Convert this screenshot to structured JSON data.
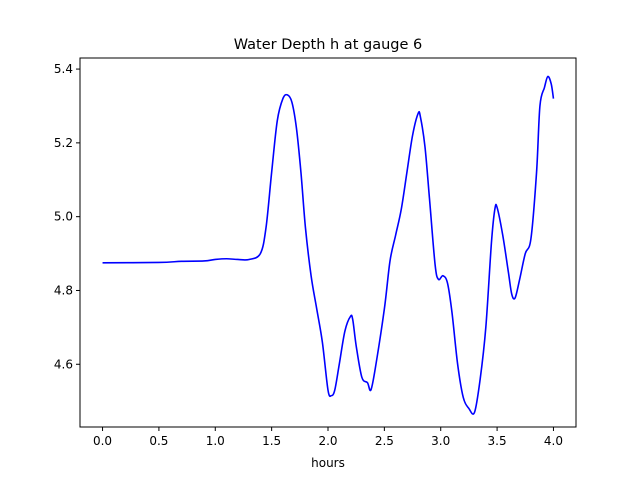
{
  "chart_data": {
    "type": "line",
    "title": "Water Depth h at gauge 6",
    "xlabel": "hours",
    "ylabel": "",
    "xlim": [
      -0.2,
      4.2
    ],
    "ylim": [
      4.43,
      5.43
    ],
    "xticks": [
      "0.0",
      "0.5",
      "1.0",
      "1.5",
      "2.0",
      "2.5",
      "3.0",
      "3.5",
      "4.0"
    ],
    "yticks": [
      "4.6",
      "4.8",
      "5.0",
      "5.2",
      "5.4"
    ],
    "grid": false,
    "line_color": "#0000ff",
    "series": [
      {
        "x": [
          0.0,
          0.5,
          0.7,
          0.9,
          1.0,
          1.1,
          1.2,
          1.3,
          1.4,
          1.45,
          1.5,
          1.55,
          1.6,
          1.64,
          1.68,
          1.72,
          1.76,
          1.8,
          1.85,
          1.9,
          1.95,
          2.0,
          2.03,
          2.06,
          2.1,
          2.15,
          2.2,
          2.22,
          2.25,
          2.3,
          2.35,
          2.38,
          2.42,
          2.5,
          2.55,
          2.6,
          2.65,
          2.7,
          2.75,
          2.8,
          2.82,
          2.86,
          2.9,
          2.95,
          2.98,
          3.02,
          3.06,
          3.1,
          3.15,
          3.2,
          3.25,
          3.3,
          3.35,
          3.4,
          3.45,
          3.48,
          3.5,
          3.55,
          3.6,
          3.63,
          3.66,
          3.7,
          3.75,
          3.8,
          3.85,
          3.88,
          3.92,
          3.95,
          3.98,
          4.0
        ],
        "y": [
          4.875,
          4.876,
          4.879,
          4.88,
          4.884,
          4.886,
          4.884,
          4.884,
          4.9,
          4.97,
          5.12,
          5.26,
          5.32,
          5.33,
          5.31,
          5.24,
          5.12,
          4.97,
          4.84,
          4.75,
          4.66,
          4.53,
          4.515,
          4.53,
          4.6,
          4.69,
          4.73,
          4.72,
          4.65,
          4.565,
          4.55,
          4.53,
          4.59,
          4.75,
          4.88,
          4.95,
          5.02,
          5.12,
          5.22,
          5.28,
          5.27,
          5.19,
          5.05,
          4.87,
          4.83,
          4.84,
          4.82,
          4.74,
          4.6,
          4.51,
          4.48,
          4.47,
          4.56,
          4.7,
          4.93,
          5.02,
          5.025,
          4.95,
          4.85,
          4.79,
          4.78,
          4.83,
          4.9,
          4.94,
          5.12,
          5.3,
          5.35,
          5.38,
          5.36,
          5.32
        ]
      }
    ]
  }
}
